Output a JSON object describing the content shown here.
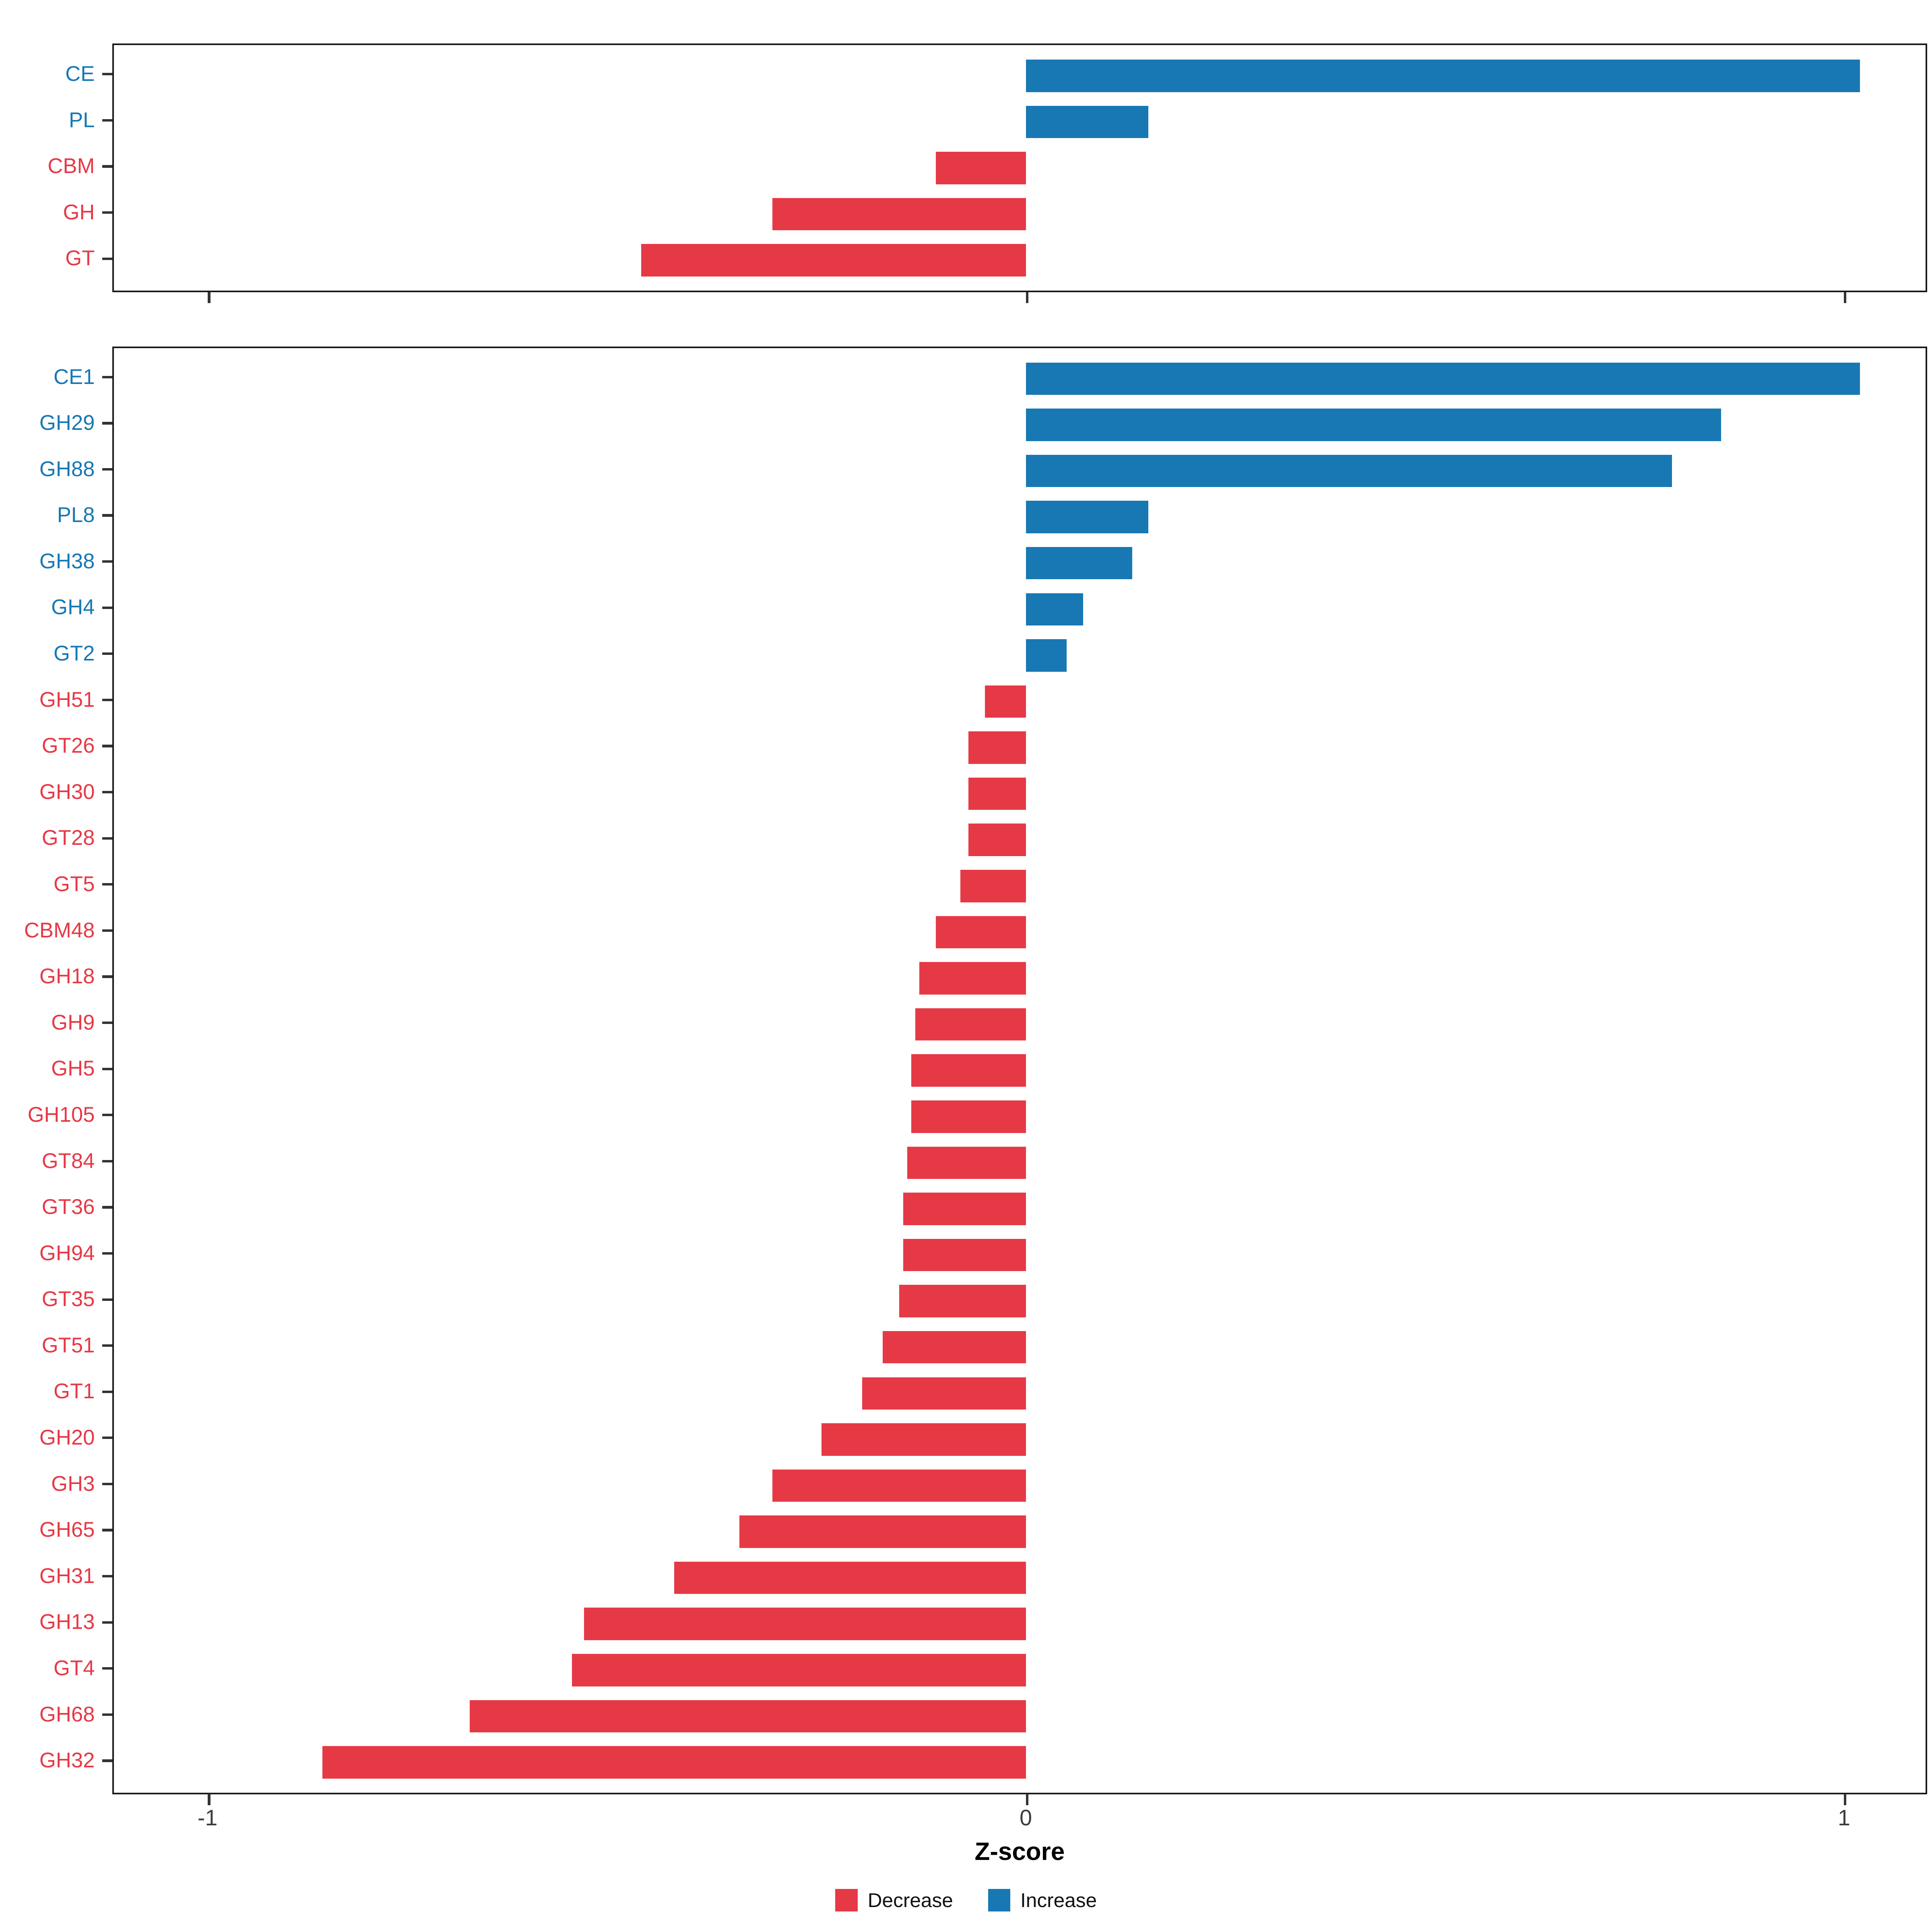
{
  "colors": {
    "decrease": "#E63946",
    "increase": "#1878B4",
    "panel_border": "#1a1a1a",
    "tick": "#333333"
  },
  "axis": {
    "xlabel": "Z-score",
    "ticks": [
      "-1",
      "0",
      "1"
    ],
    "tick_values": [
      -1,
      0,
      1
    ],
    "xlim": [
      -1.115,
      1.1
    ]
  },
  "legend": [
    {
      "label": "Decrease",
      "color_key": "decrease"
    },
    {
      "label": "Increase",
      "color_key": "increase"
    }
  ],
  "chart_data": [
    {
      "type": "bar",
      "orientation": "horizontal",
      "panel": "top-class-level",
      "title": "",
      "xlabel": "Z-score",
      "ylabel": "",
      "xlim": [
        -1.115,
        1.1
      ],
      "xticks": [
        -1,
        0,
        1
      ],
      "grid": false,
      "legend_position": "bottom",
      "categories": [
        "CE",
        "PL",
        "CBM",
        "GH",
        "GT"
      ],
      "values": [
        1.02,
        0.15,
        -0.11,
        -0.31,
        -0.47
      ]
    },
    {
      "type": "bar",
      "orientation": "horizontal",
      "panel": "bottom-family-level",
      "title": "",
      "xlabel": "Z-score",
      "ylabel": "",
      "xlim": [
        -1.115,
        1.1
      ],
      "xticks": [
        -1,
        0,
        1
      ],
      "grid": false,
      "legend_position": "bottom",
      "categories": [
        "CE1",
        "GH29",
        "GH88",
        "PL8",
        "GH38",
        "GH4",
        "GT2",
        "GH51",
        "GT26",
        "GH30",
        "GT28",
        "GT5",
        "CBM48",
        "GH18",
        "GH9",
        "GH5",
        "GH105",
        "GT84",
        "GT36",
        "GH94",
        "GT35",
        "GT51",
        "GT1",
        "GH20",
        "GH3",
        "GH65",
        "GH31",
        "GH13",
        "GT4",
        "GH68",
        "GH32"
      ],
      "values": [
        1.02,
        0.85,
        0.79,
        0.15,
        0.13,
        0.07,
        0.05,
        -0.05,
        -0.07,
        -0.07,
        -0.07,
        -0.08,
        -0.11,
        -0.13,
        -0.135,
        -0.14,
        -0.14,
        -0.145,
        -0.15,
        -0.15,
        -0.155,
        -0.175,
        -0.2,
        -0.25,
        -0.31,
        -0.35,
        -0.43,
        -0.54,
        -0.555,
        -0.68,
        -0.86
      ]
    }
  ]
}
